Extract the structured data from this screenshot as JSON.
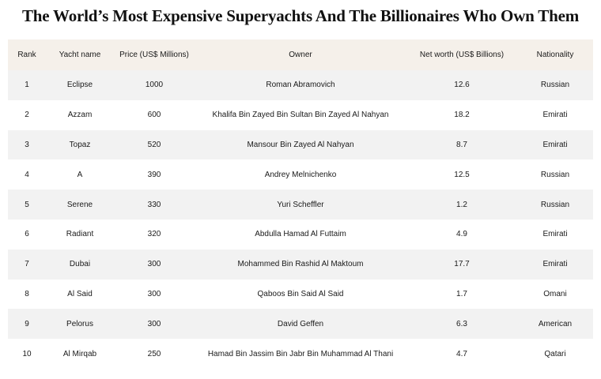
{
  "title": "The World’s Most Expensive Superyachts And The Billionaires Who Own Them",
  "table": {
    "headers": [
      "Rank",
      "Yacht name",
      "Price (US$ Millions)",
      "Owner",
      "Net worth (US$ Billions)",
      "Nationality"
    ],
    "rows": [
      [
        "1",
        "Eclipse",
        "1000",
        "Roman Abramovich",
        "12.6",
        "Russian"
      ],
      [
        "2",
        "Azzam",
        "600",
        "Khalifa Bin Zayed Bin Sultan Bin Zayed Al Nahyan",
        "18.2",
        "Emirati"
      ],
      [
        "3",
        "Topaz",
        "520",
        "Mansour Bin Zayed Al Nahyan",
        "8.7",
        "Emirati"
      ],
      [
        "4",
        "A",
        "390",
        "Andrey Melnichenko",
        "12.5",
        "Russian"
      ],
      [
        "5",
        "Serene",
        "330",
        "Yuri Scheffler",
        "1.2",
        "Russian"
      ],
      [
        "6",
        "Radiant",
        "320",
        "Abdulla Hamad Al Futtaim",
        "4.9",
        "Emirati"
      ],
      [
        "7",
        "Dubai",
        "300",
        "Mohammed Bin Rashid Al Maktoum",
        "17.7",
        "Emirati"
      ],
      [
        "8",
        "Al Said",
        "300",
        "Qaboos Bin Said Al Said",
        "1.7",
        "Omani"
      ],
      [
        "9",
        "Pelorus",
        "300",
        "David Geffen",
        "6.3",
        "American"
      ],
      [
        "10",
        "Al Mirqab",
        "250",
        "Hamad Bin Jassim Bin Jabr Bin Muhammad Al Thani",
        "4.7",
        "Qatari"
      ]
    ]
  },
  "colors": {
    "header_bg": "#f5f0ea",
    "stripe_bg": "#f2f2f2",
    "text": "#1a1a1a"
  }
}
